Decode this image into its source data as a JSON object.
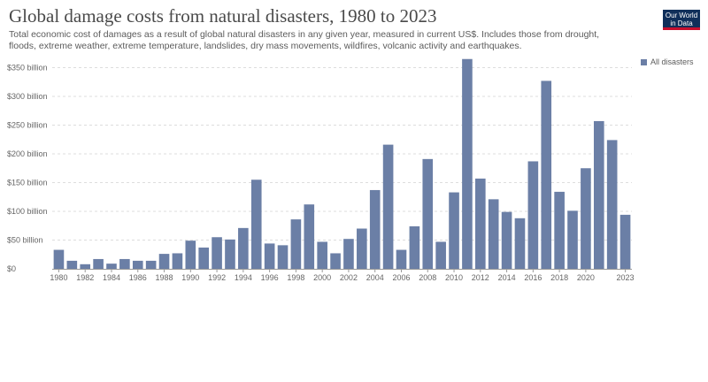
{
  "header": {
    "title": "Global damage costs from natural disasters, 1980 to 2023",
    "subtitle": "Total economic cost of damages as a result of global natural disasters in any given year, measured in current US$. Includes those from drought, floods, extreme weather, extreme temperature, landslides, dry mass movements, wildfires, volcanic activity and earthquakes.",
    "logo_text": "Our World in Data"
  },
  "colors": {
    "bar": "#6b7fa6",
    "grid": "#dddddd",
    "axis": "#999999",
    "logo_bg": "#102f5a",
    "logo_accent": "#c8102e"
  },
  "chart_data": {
    "type": "bar",
    "title": "Global damage costs from natural disasters, 1980 to 2023",
    "xlabel": "",
    "ylabel": "",
    "ylim": [
      0,
      360
    ],
    "y_unit": "billion",
    "y_ticks": [
      "$0",
      "$50 billion",
      "$100 billion",
      "$150 billion",
      "$200 billion",
      "$250 billion",
      "$300 billion",
      "$350 billion"
    ],
    "x_ticks": [
      "1980",
      "1982",
      "1984",
      "1986",
      "1988",
      "1990",
      "1992",
      "1994",
      "1996",
      "1998",
      "2000",
      "2002",
      "2004",
      "2006",
      "2008",
      "2010",
      "2012",
      "2014",
      "2016",
      "2018",
      "2020",
      "2023"
    ],
    "grid": true,
    "legend_position": "top-right",
    "categories": [
      1980,
      1981,
      1982,
      1983,
      1984,
      1985,
      1986,
      1987,
      1988,
      1989,
      1990,
      1991,
      1992,
      1993,
      1994,
      1995,
      1996,
      1997,
      1998,
      1999,
      2000,
      2001,
      2002,
      2003,
      2004,
      2005,
      2006,
      2007,
      2008,
      2009,
      2010,
      2011,
      2012,
      2013,
      2014,
      2015,
      2016,
      2017,
      2018,
      2019,
      2020,
      2021,
      2022,
      2023
    ],
    "series": [
      {
        "name": "All disasters",
        "values": [
          33,
          14,
          8,
          17,
          9,
          17,
          14,
          14,
          26,
          27,
          49,
          37,
          55,
          51,
          71,
          155,
          44,
          41,
          86,
          112,
          47,
          27,
          52,
          70,
          137,
          216,
          33,
          74,
          191,
          47,
          133,
          365,
          157,
          121,
          99,
          88,
          187,
          327,
          134,
          101,
          175,
          257,
          224,
          94
        ]
      }
    ]
  }
}
